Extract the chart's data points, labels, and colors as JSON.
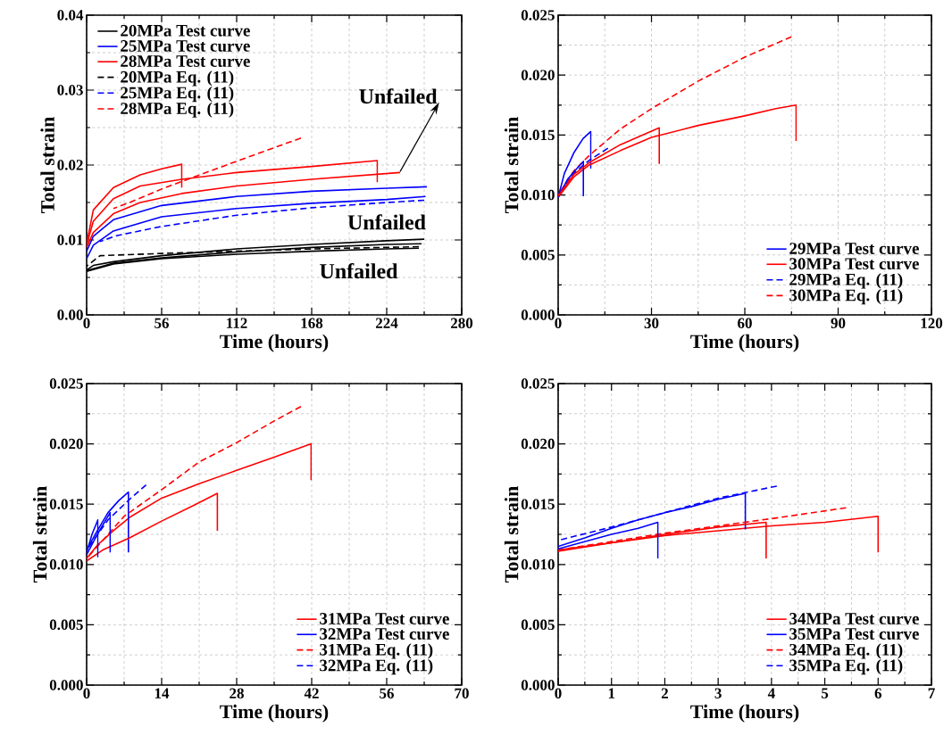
{
  "chart_data": [
    {
      "type": "line",
      "xlabel": "Time (hours)",
      "ylabel": "Total strain",
      "xlim": [
        0,
        280
      ],
      "ylim": [
        0,
        0.04
      ],
      "xticks": [
        0,
        56,
        112,
        168,
        224,
        280
      ],
      "yticks": [
        {
          "value": 0,
          "label": "0.00"
        },
        {
          "value": 0.01,
          "label": "0.01"
        },
        {
          "value": 0.02,
          "label": "0.02"
        },
        {
          "value": 0.03,
          "label": "0.03"
        },
        {
          "value": 0.04,
          "label": "0.04"
        }
      ],
      "grid": true,
      "legend": "top left",
      "annotations": [
        {
          "text": "Unfailed",
          "x": 234,
          "y": 0.019
        },
        "Unfailed",
        "Unfailed"
      ],
      "series": [
        {
          "name": "20MPa Test curve",
          "color": "#000000",
          "line_style": "solid",
          "x": [
            0,
            5,
            20,
            56,
            112,
            168,
            224,
            252
          ],
          "values": [
            0.006,
            0.0066,
            0.0071,
            0.0079,
            0.0088,
            0.0094,
            0.0099,
            0.0101
          ]
        },
        {
          "name": "25MPa Test curve",
          "color": "#0000ff",
          "line_style": "solid",
          "x": [
            0,
            5,
            20,
            56,
            112,
            168,
            224,
            254
          ],
          "values": [
            0.0085,
            0.0105,
            0.0127,
            0.0146,
            0.0158,
            0.0165,
            0.0169,
            0.0171
          ]
        },
        {
          "name": "28MPa Test curve",
          "color": "#ff0000",
          "line_style": "solid",
          "x": [
            0,
            5,
            20,
            40,
            56,
            71,
            71
          ],
          "values": [
            0.0095,
            0.014,
            0.017,
            0.0187,
            0.0195,
            0.0201,
            0.017
          ]
        },
        {
          "name": "20MPa Eq. (11)",
          "color": "#000000",
          "line_style": "dashed",
          "x": [
            0,
            10,
            56,
            112,
            168,
            248
          ],
          "values": [
            0.0065,
            0.0079,
            0.0082,
            0.0085,
            0.0088,
            0.0091
          ]
        },
        {
          "name": "25MPa Eq. (11)",
          "color": "#0000ff",
          "line_style": "dashed",
          "x": [
            10,
            23,
            56,
            112,
            168,
            224,
            252
          ],
          "values": [
            0.0098,
            0.0106,
            0.0118,
            0.0133,
            0.0143,
            0.015,
            0.0153
          ]
        },
        {
          "name": "28MPa Eq. (11)",
          "color": "#ff0000",
          "line_style": "dashed",
          "x": [
            20,
            32,
            56,
            71,
            112,
            160
          ],
          "values": [
            0.0142,
            0.015,
            0.0168,
            0.0178,
            0.0205,
            0.0236
          ]
        },
        {
          "color": "#000000",
          "line_style": "solid",
          "x": [
            0,
            20,
            56,
            112,
            168,
            224,
            250
          ],
          "values": [
            0.0059,
            0.0069,
            0.0076,
            0.0084,
            0.009,
            0.0094,
            0.0095
          ]
        },
        {
          "color": "#000000",
          "line_style": "solid",
          "x": [
            0,
            20,
            56,
            112,
            168,
            224,
            248
          ],
          "values": [
            0.0058,
            0.0068,
            0.0075,
            0.0081,
            0.0085,
            0.0088,
            0.0089
          ]
        },
        {
          "color": "#0000ff",
          "line_style": "solid",
          "x": [
            0,
            5,
            20,
            56,
            112,
            168,
            224,
            253
          ],
          "values": [
            0.0075,
            0.0093,
            0.0112,
            0.0131,
            0.0142,
            0.0149,
            0.0154,
            0.0158
          ]
        },
        {
          "color": "#ff0000",
          "line_style": "solid",
          "x": [
            0,
            5,
            20,
            40,
            71,
            112,
            168,
            217,
            217
          ],
          "values": [
            0.0093,
            0.0125,
            0.0155,
            0.0172,
            0.0181,
            0.019,
            0.0198,
            0.0206,
            0.0177
          ]
        },
        {
          "color": "#ff0000",
          "line_style": "solid",
          "x": [
            0,
            5,
            20,
            40,
            71,
            112,
            168,
            234
          ],
          "values": [
            0.009,
            0.011,
            0.0135,
            0.015,
            0.0162,
            0.0172,
            0.0181,
            0.019
          ]
        }
      ]
    },
    {
      "type": "line",
      "xlabel": "Time (hours)",
      "ylabel": "Total strain",
      "xlim": [
        0,
        120
      ],
      "ylim": [
        0,
        0.025
      ],
      "xticks": [
        0,
        30,
        60,
        90,
        120
      ],
      "yticks": [
        {
          "value": 0,
          "label": "0.000"
        },
        {
          "value": 0.005,
          "label": "0.005"
        },
        {
          "value": 0.01,
          "label": "0.010"
        },
        {
          "value": 0.015,
          "label": "0.015"
        },
        {
          "value": 0.02,
          "label": "0.020"
        },
        {
          "value": 0.025,
          "label": "0.025"
        }
      ],
      "grid": true,
      "legend": "bottom right",
      "series": [
        {
          "name": "29MPa Test curve",
          "color": "#0000ff",
          "line_style": "solid",
          "x": [
            0,
            2,
            5,
            8,
            10.5,
            10.5
          ],
          "values": [
            0.0098,
            0.0118,
            0.0135,
            0.0147,
            0.0153,
            0.0122
          ]
        },
        {
          "name": "30MPa Test curve",
          "color": "#ff0000",
          "line_style": "solid",
          "x": [
            0,
            5,
            10,
            20,
            30,
            45,
            60,
            70,
            76.5,
            76.5
          ],
          "values": [
            0.0098,
            0.0115,
            0.0125,
            0.0137,
            0.0148,
            0.0158,
            0.0166,
            0.0172,
            0.0175,
            0.0145
          ]
        },
        {
          "name": "29MPa Eq. (11)",
          "color": "#0000ff",
          "line_style": "dashed",
          "x": [
            0,
            5,
            10,
            16
          ],
          "values": [
            0.01,
            0.0118,
            0.0129,
            0.0139
          ]
        },
        {
          "name": "30MPa Eq. (11)",
          "color": "#ff0000",
          "line_style": "dashed",
          "x": [
            0,
            5,
            10,
            20,
            30,
            45,
            60,
            75
          ],
          "values": [
            0.01,
            0.012,
            0.0133,
            0.0155,
            0.0172,
            0.0195,
            0.0215,
            0.0232
          ]
        },
        {
          "color": "#0000ff",
          "line_style": "solid",
          "x": [
            0,
            3,
            6,
            8.1,
            8.1
          ],
          "values": [
            0.0098,
            0.0113,
            0.0122,
            0.0128,
            0.0099
          ]
        },
        {
          "color": "#ff0000",
          "line_style": "solid",
          "x": [
            0,
            5,
            10,
            20,
            32.5,
            32.5
          ],
          "values": [
            0.0099,
            0.0117,
            0.0127,
            0.0142,
            0.0156,
            0.0126
          ]
        }
      ]
    },
    {
      "type": "line",
      "xlabel": "Time (hours)",
      "ylabel": "Total strain",
      "xlim": [
        0,
        70
      ],
      "ylim": [
        0,
        0.025
      ],
      "xticks": [
        0,
        14,
        28,
        42,
        56,
        70
      ],
      "yticks": [
        {
          "value": 0,
          "label": "0.000"
        },
        {
          "value": 0.005,
          "label": "0.005"
        },
        {
          "value": 0.01,
          "label": "0.010"
        },
        {
          "value": 0.015,
          "label": "0.015"
        },
        {
          "value": 0.02,
          "label": "0.020"
        },
        {
          "value": 0.025,
          "label": "0.025"
        }
      ],
      "grid": true,
      "legend": "bottom right",
      "series": [
        {
          "name": "31MPa Test curve",
          "color": "#ff0000",
          "line_style": "solid",
          "x": [
            0,
            2,
            5,
            8,
            14,
            21,
            28,
            35,
            41.9,
            41.9
          ],
          "values": [
            0.0105,
            0.0116,
            0.0128,
            0.0139,
            0.0155,
            0.0167,
            0.0178,
            0.0189,
            0.02,
            0.017
          ]
        },
        {
          "name": "32MPa Test curve",
          "color": "#0000ff",
          "line_style": "solid",
          "x": [
            0,
            2,
            4,
            6,
            7.8,
            7.8
          ],
          "values": [
            0.0112,
            0.0128,
            0.0143,
            0.0153,
            0.016,
            0.011
          ]
        },
        {
          "name": "31MPa Eq. (11)",
          "color": "#ff0000",
          "line_style": "dashed",
          "x": [
            0,
            7,
            14,
            21,
            28,
            35,
            40
          ],
          "values": [
            0.0105,
            0.014,
            0.0162,
            0.0185,
            0.0201,
            0.0219,
            0.0231
          ]
        },
        {
          "name": "32MPa Eq. (11)",
          "color": "#0000ff",
          "line_style": "dashed",
          "x": [
            0,
            4,
            8,
            11.1
          ],
          "values": [
            0.0112,
            0.0137,
            0.0154,
            0.0166
          ]
        },
        {
          "color": "#ff0000",
          "line_style": "solid",
          "x": [
            0,
            3,
            8,
            14,
            20,
            24.4,
            24.4
          ],
          "values": [
            0.0103,
            0.0112,
            0.0122,
            0.0136,
            0.0149,
            0.0159,
            0.0128
          ]
        },
        {
          "color": "#0000ff",
          "line_style": "solid",
          "x": [
            0,
            1,
            2.1,
            2.1
          ],
          "values": [
            0.011,
            0.0125,
            0.0137,
            0.0106
          ]
        },
        {
          "color": "#0000ff",
          "line_style": "solid",
          "x": [
            0,
            2,
            4.4,
            4.4
          ],
          "values": [
            0.0108,
            0.0125,
            0.0143,
            0.011
          ]
        }
      ]
    },
    {
      "type": "line",
      "xlabel": "Time (hours)",
      "ylabel": "Total strain",
      "xlim": [
        0,
        7
      ],
      "ylim": [
        0,
        0.025
      ],
      "xticks": [
        0,
        1,
        2,
        3,
        4,
        5,
        6,
        7
      ],
      "yticks": [
        {
          "value": 0,
          "label": "0.000"
        },
        {
          "value": 0.005,
          "label": "0.005"
        },
        {
          "value": 0.01,
          "label": "0.010"
        },
        {
          "value": 0.015,
          "label": "0.015"
        },
        {
          "value": 0.02,
          "label": "0.020"
        },
        {
          "value": 0.025,
          "label": "0.025"
        }
      ],
      "grid": true,
      "legend": "bottom right",
      "series": [
        {
          "name": "34MPa Test curve",
          "color": "#ff0000",
          "line_style": "solid",
          "x": [
            0,
            1,
            2,
            3,
            4,
            5,
            6,
            6
          ],
          "values": [
            0.0111,
            0.0118,
            0.0124,
            0.0128,
            0.0132,
            0.0135,
            0.014,
            0.011
          ]
        },
        {
          "name": "35MPa Test curve",
          "color": "#0000ff",
          "line_style": "solid",
          "x": [
            0,
            0.5,
            1,
            1.5,
            2,
            2.5,
            3,
            3.51,
            3.51
          ],
          "values": [
            0.0115,
            0.0122,
            0.013,
            0.0137,
            0.0143,
            0.0148,
            0.0154,
            0.0159,
            0.0129
          ]
        },
        {
          "name": "34MPa Eq. (11)",
          "color": "#ff0000",
          "line_style": "dashed",
          "x": [
            0,
            1,
            2,
            3,
            4,
            5.4
          ],
          "values": [
            0.0112,
            0.0119,
            0.0126,
            0.0132,
            0.0138,
            0.0147
          ]
        },
        {
          "name": "35MPa Eq. (11)",
          "color": "#0000ff",
          "line_style": "dashed",
          "x": [
            0,
            1,
            2,
            3,
            4.1
          ],
          "values": [
            0.012,
            0.0131,
            0.0143,
            0.0155,
            0.0165
          ]
        },
        {
          "color": "#ff0000",
          "line_style": "solid",
          "x": [
            0,
            1,
            2,
            3,
            3.9,
            3.9
          ],
          "values": [
            0.0112,
            0.0118,
            0.0125,
            0.0131,
            0.0135,
            0.0105
          ]
        },
        {
          "color": "#0000ff",
          "line_style": "solid",
          "x": [
            0,
            0.5,
            1,
            1.5,
            1.87,
            1.87
          ],
          "values": [
            0.0113,
            0.0119,
            0.0125,
            0.013,
            0.0135,
            0.0105
          ]
        }
      ]
    }
  ]
}
